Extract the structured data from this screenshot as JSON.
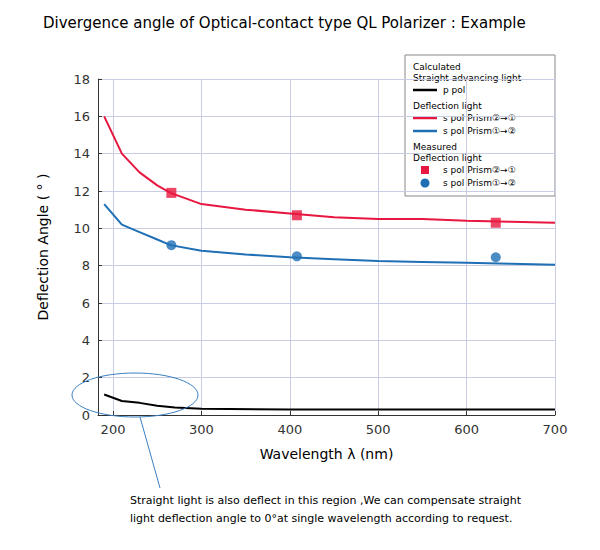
{
  "chart_data": {
    "type": "line",
    "title": "Divergence angle of Optical-contact type QL Polarizer : Example",
    "x_label": "Wavelength λ (nm)",
    "y_label": "Deflection Angle ( ° )",
    "xlim": [
      183,
      700
    ],
    "xticks": [
      200,
      300,
      400,
      500,
      600,
      700
    ],
    "ylim": [
      0,
      18
    ],
    "yticks": [
      0,
      2,
      4,
      6,
      8,
      10,
      12,
      14,
      16,
      18
    ],
    "grid": true,
    "legend": "top-right",
    "annotation": [
      "Straight light is also deflect in this region ,We can compensate straight",
      "light deflection angle to 0°at single wavelength according to request."
    ],
    "series": [
      {
        "name": "p pol",
        "legend_heading": [
          "Calculated",
          "Straight advancing light"
        ],
        "type": "line",
        "line_style": "solid",
        "color": "#000000",
        "x": [
          190,
          210,
          230,
          250,
          270,
          300,
          400,
          500,
          600,
          700
        ],
        "values": [
          1.1,
          0.75,
          0.65,
          0.5,
          0.4,
          0.33,
          0.3,
          0.3,
          0.3,
          0.3
        ]
      },
      {
        "name": "s pol Prism②→①",
        "legend_heading": [
          "Deflection light"
        ],
        "type": "line",
        "line_style": "solid",
        "color": "#e8173f",
        "x": [
          190,
          210,
          230,
          250,
          265,
          300,
          350,
          400,
          450,
          500,
          550,
          600,
          650,
          700
        ],
        "values": [
          16.0,
          14.0,
          13.0,
          12.3,
          11.9,
          11.3,
          11.0,
          10.8,
          10.6,
          10.5,
          10.5,
          10.4,
          10.35,
          10.3
        ]
      },
      {
        "name": "s pol Prism①→②",
        "type": "line",
        "line_style": "solid",
        "color": "#1f6fb5",
        "x": [
          190,
          210,
          230,
          250,
          265,
          300,
          350,
          400,
          450,
          500,
          550,
          600,
          650,
          700
        ],
        "values": [
          11.3,
          10.2,
          9.8,
          9.4,
          9.1,
          8.8,
          8.6,
          8.45,
          8.35,
          8.25,
          8.2,
          8.15,
          8.1,
          8.05
        ]
      },
      {
        "name": "s pol Prism②→①",
        "legend_heading": [
          "Measured",
          "Deflection light"
        ],
        "type": "scatter",
        "marker": "square",
        "color": "#e8173f",
        "x": [
          266,
          408,
          633
        ],
        "values": [
          11.9,
          10.7,
          10.3
        ]
      },
      {
        "name": "s pol Prism①→②",
        "type": "scatter",
        "marker": "circle",
        "color": "#1f6fb5",
        "x": [
          266,
          408,
          633
        ],
        "values": [
          9.1,
          8.5,
          8.45
        ]
      }
    ]
  }
}
